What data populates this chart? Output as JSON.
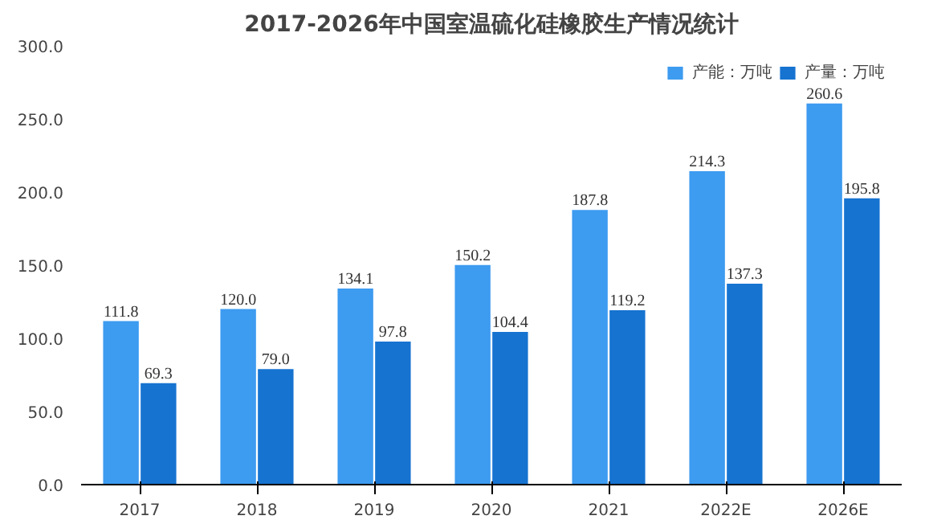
{
  "chart_data": {
    "type": "bar",
    "title": "2017-2026年中国室温硫化硅橡胶生产情况统计",
    "categories": [
      "2017",
      "2018",
      "2019",
      "2020",
      "2021",
      "2022E",
      "2026E"
    ],
    "series": [
      {
        "name": "产能：万吨",
        "color": "#3d9bf0",
        "values": [
          111.8,
          120.0,
          134.1,
          150.2,
          187.8,
          214.3,
          260.6
        ]
      },
      {
        "name": "产量：万吨",
        "color": "#1673d0",
        "values": [
          69.3,
          79.0,
          97.8,
          104.4,
          119.2,
          137.3,
          195.8
        ]
      }
    ],
    "value_labels": [
      [
        "111.8",
        "120.0",
        "134.1",
        "150.2",
        "187.8",
        "214.3",
        "260.6"
      ],
      [
        "69.3",
        "79.0",
        "97.8",
        "104.4",
        "119.2",
        "137.3",
        "195.8"
      ]
    ],
    "ylim": [
      0,
      300
    ],
    "yticks": [
      {
        "value": 0,
        "label": "0.0"
      },
      {
        "value": 50,
        "label": "50.0"
      },
      {
        "value": 100,
        "label": "100.0"
      },
      {
        "value": 150,
        "label": "150.0"
      },
      {
        "value": 200,
        "label": "200.0"
      },
      {
        "value": 250,
        "label": "250.0"
      },
      {
        "value": 300,
        "label": "300.0"
      }
    ],
    "legend": "top right",
    "grid": false
  }
}
